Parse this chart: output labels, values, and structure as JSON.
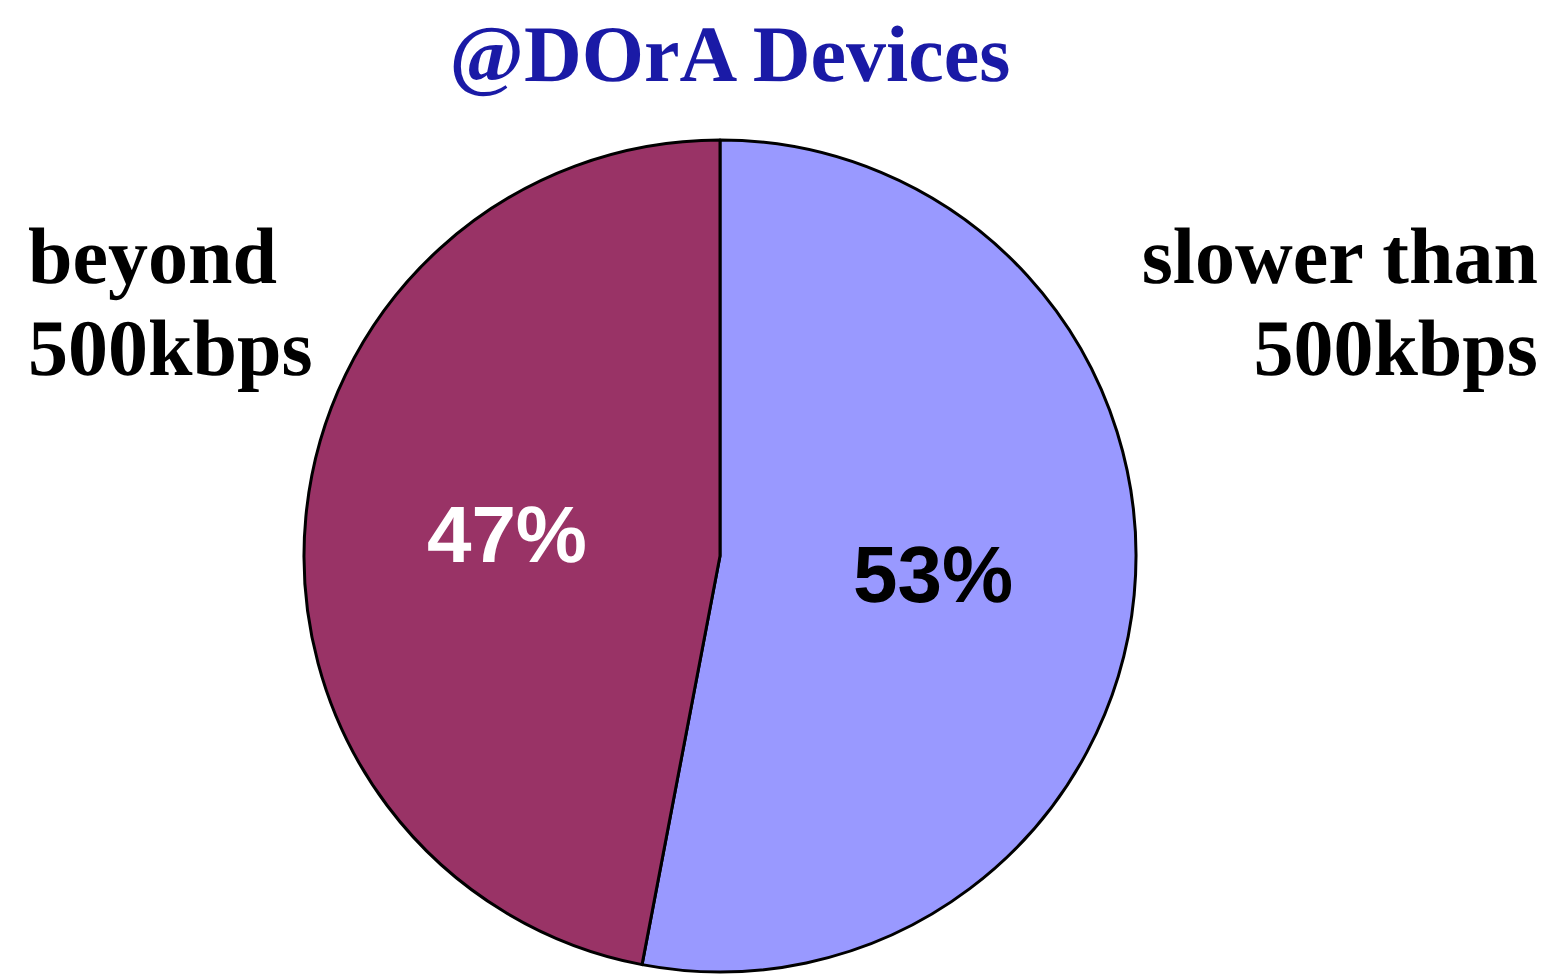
{
  "chart_data": {
    "type": "pie",
    "title": "@DOrA Devices",
    "categories": [
      "slower than 500kbps",
      "beyond 500kbps"
    ],
    "values": [
      53,
      47
    ],
    "colors": [
      "#9999ff",
      "#993366"
    ],
    "value_labels": [
      "53%",
      "47%"
    ]
  }
}
